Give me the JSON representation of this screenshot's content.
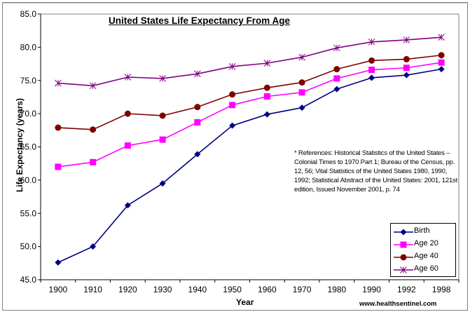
{
  "chart_data": {
    "type": "line",
    "title": "United States Life Expectancy From Age",
    "xlabel": "Year",
    "ylabel": "Life Expectancy (years)",
    "categories": [
      "1900",
      "1910",
      "1920",
      "1930",
      "1940",
      "1950",
      "1960",
      "1970",
      "1980",
      "1990",
      "1992",
      "1998"
    ],
    "ylim": [
      45.0,
      85.0
    ],
    "yticks": [
      "85.0",
      "80.0",
      "75.0",
      "70.0",
      "65.0",
      "60.0",
      "55.0",
      "50.0",
      "45.0"
    ],
    "grid": false,
    "legend_position": "bottom-right",
    "series": [
      {
        "name": "Birth",
        "color": "#000080",
        "marker": "diamond",
        "values": [
          47.6,
          50.0,
          56.2,
          59.5,
          63.9,
          68.2,
          69.9,
          70.9,
          73.7,
          75.4,
          75.8,
          76.7
        ]
      },
      {
        "name": "Age 20",
        "color": "#ff00ff",
        "marker": "square",
        "values": [
          62.0,
          62.7,
          65.2,
          66.1,
          68.7,
          71.3,
          72.6,
          73.2,
          75.3,
          76.6,
          76.9,
          77.7
        ]
      },
      {
        "name": "Age 40",
        "color": "#800000",
        "marker": "circle",
        "values": [
          67.9,
          67.6,
          70.0,
          69.7,
          71.0,
          72.9,
          73.9,
          74.7,
          76.7,
          78.0,
          78.2,
          78.8
        ]
      },
      {
        "name": "Age 60",
        "color": "#800080",
        "marker": "star",
        "values": [
          74.6,
          74.2,
          75.5,
          75.3,
          76.0,
          77.1,
          77.6,
          78.5,
          79.9,
          80.8,
          81.1,
          81.5
        ]
      }
    ],
    "annotation": "* References: Historical Statistics of the United States – Colonial Times to 1970 Part 1; Bureau of the Census, pp. 12, 56; Vital Statistics of the United States 1980, 1990, 1992; Statistical Abstract of the United States: 2001, 121st edition, Issued November 2001, p. 74",
    "source_credit": "www.healthsentinel.com"
  }
}
